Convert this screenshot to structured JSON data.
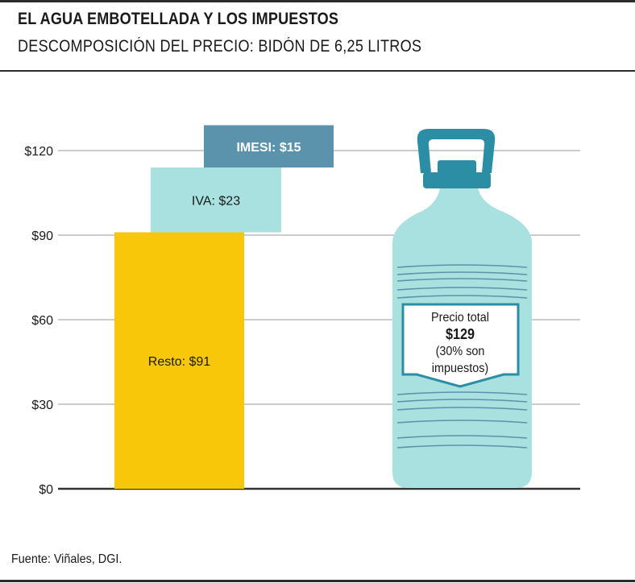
{
  "header": {
    "title": "EL AGUA EMBOTELLADA Y LOS IMPUESTOS",
    "subtitle": "DESCOMPOSICIÓN DEL PRECIO: BIDÓN DE 6,25 LITROS"
  },
  "footer": {
    "source": "Fuente: Viñales, DGI."
  },
  "callout": {
    "line1": "Precio total",
    "line2": "$129",
    "line3": "(30% son",
    "line4": "impuestos)"
  },
  "colors": {
    "resto": "#f9c70a",
    "iva": "#a8e1df",
    "imesi": "#5b93ad",
    "bottle": "#a9e0e0",
    "bottle_dark": "#2b8ea5",
    "grid": "#999999",
    "axis": "#333333"
  },
  "chart_data": {
    "type": "bar",
    "subtype": "waterfall",
    "ylim": [
      0,
      129
    ],
    "yticks": [
      0,
      30,
      60,
      90,
      120
    ],
    "ytick_labels": [
      "$0",
      "$30",
      "$60",
      "$90",
      "$120"
    ],
    "grid": true,
    "segments": [
      {
        "name": "Resto",
        "label": "Resto: $91",
        "start": 0,
        "end": 91,
        "color": "#f9c70a"
      },
      {
        "name": "IVA",
        "label": "IVA: $23",
        "start": 91,
        "end": 114,
        "color": "#a8e1df"
      },
      {
        "name": "IMESI",
        "label": "IMESI: $15",
        "start": 114,
        "end": 129,
        "color": "#5b93ad"
      }
    ],
    "total": 129
  }
}
